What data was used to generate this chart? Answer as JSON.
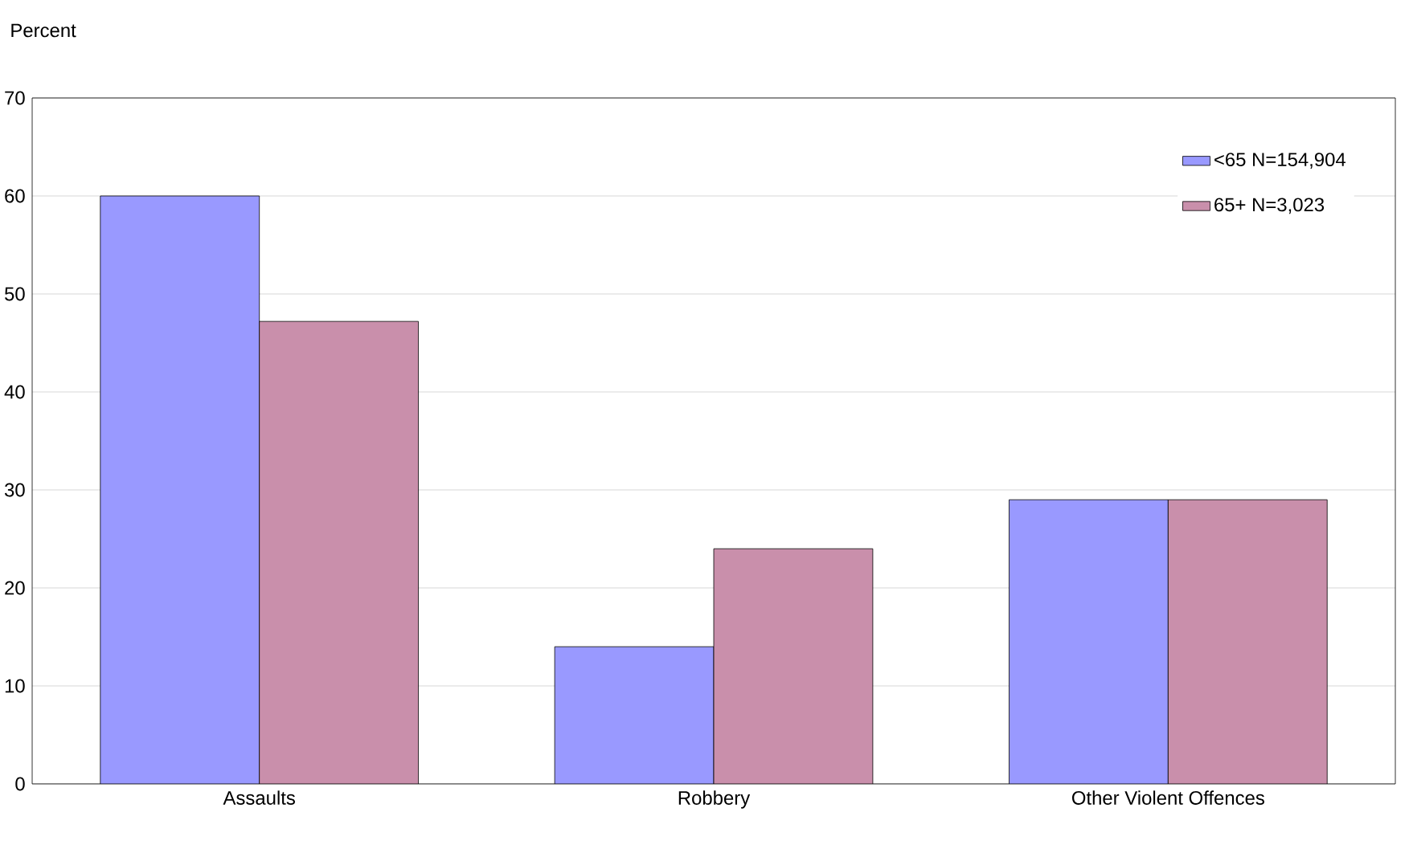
{
  "chart_data": {
    "type": "bar",
    "ylabel": "Percent",
    "categories": [
      "Assaults",
      "Robbery",
      "Other Violent Offences"
    ],
    "series": [
      {
        "name": "<65 N=154,904",
        "color": "#9999ff",
        "values": [
          60,
          14,
          29
        ]
      },
      {
        "name": "65+ N=3,023",
        "color": "#c98fab",
        "values": [
          47.2,
          24,
          29
        ]
      }
    ],
    "ylim": [
      0,
      70
    ],
    "yticks": [
      0,
      10,
      20,
      30,
      40,
      50,
      60,
      70
    ],
    "grid": "y",
    "legend": "top right"
  }
}
